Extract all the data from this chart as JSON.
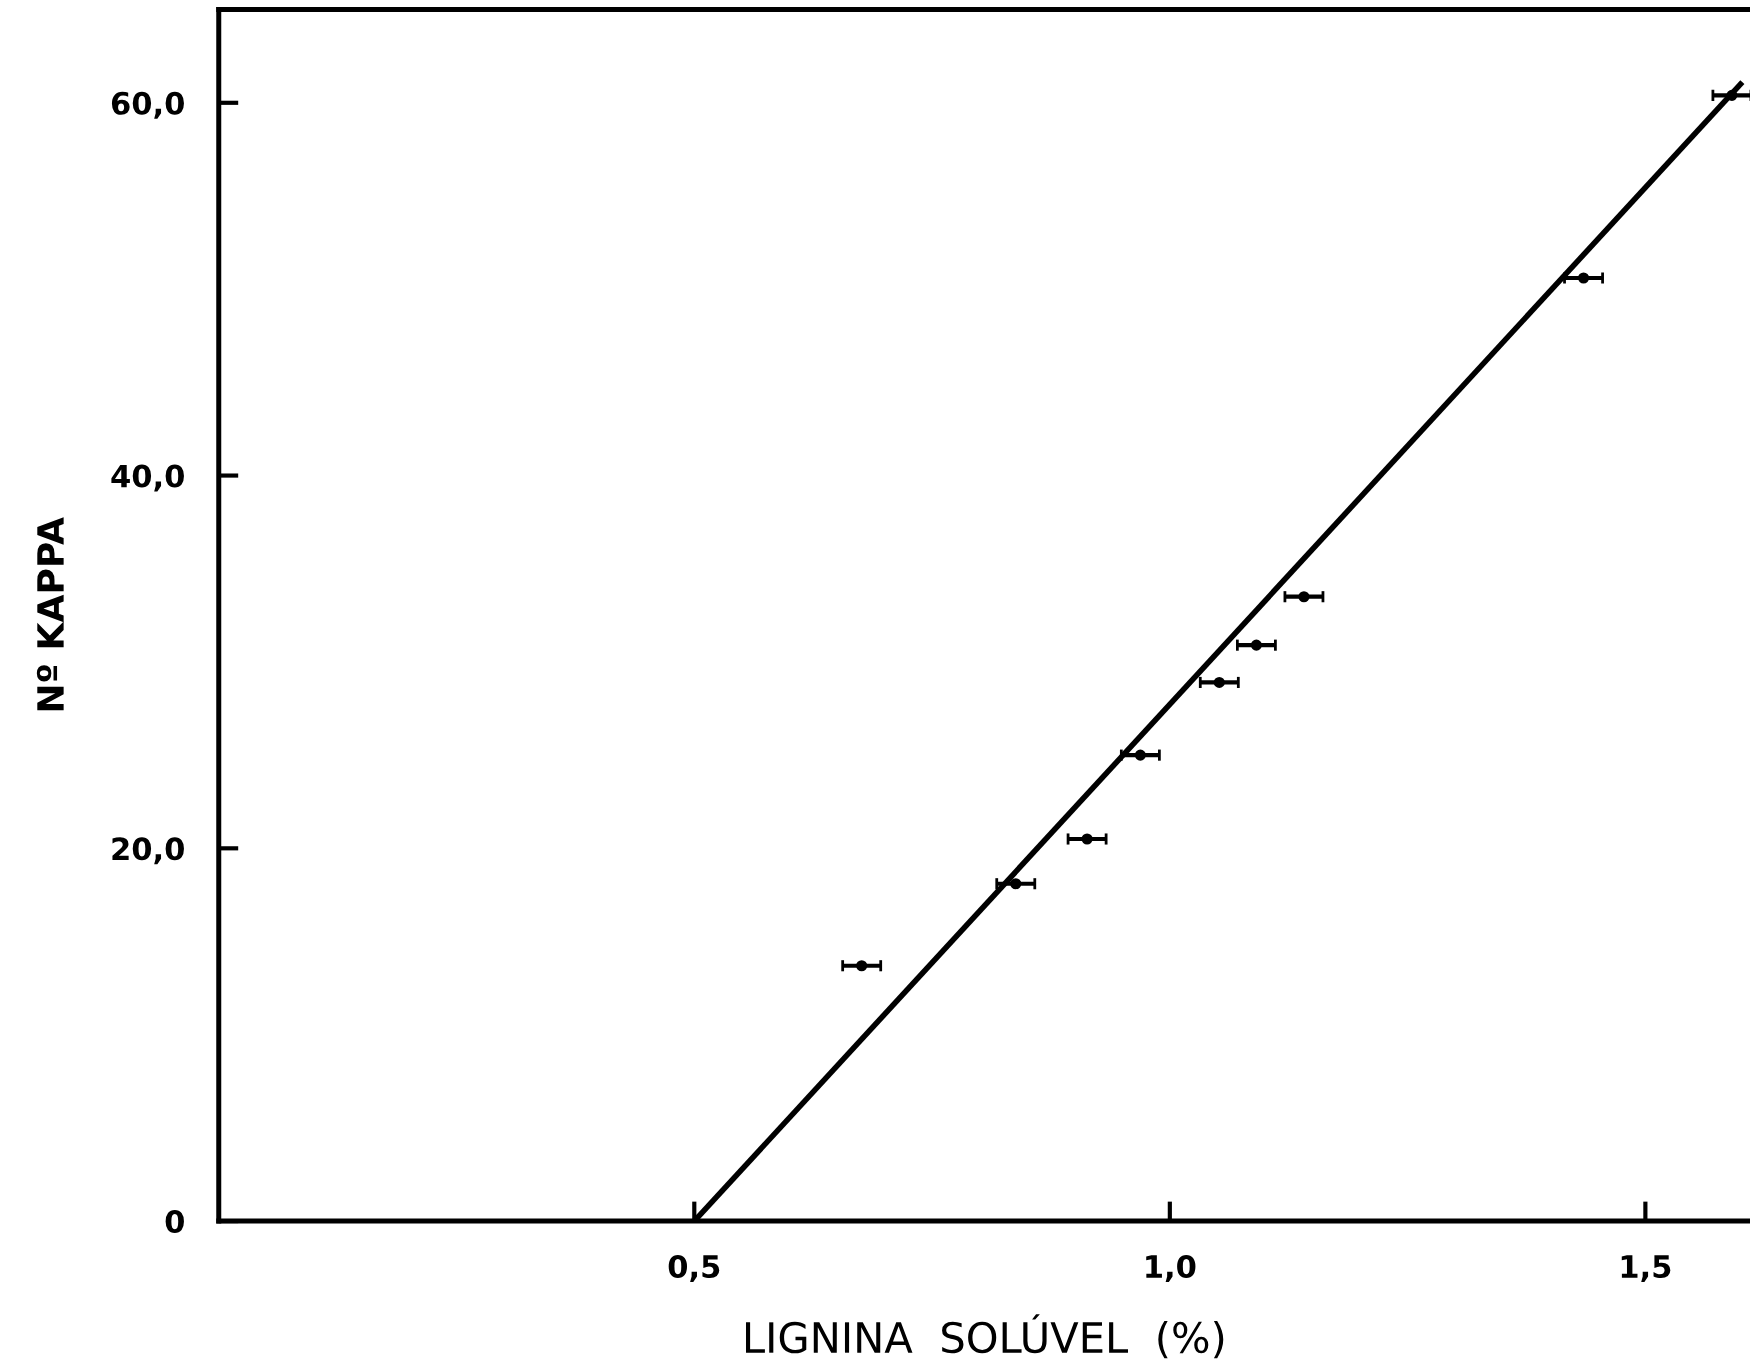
{
  "chart_data": {
    "type": "scatter",
    "xlabel": "LIGNINA  SOLÚVEL  (%)",
    "ylabel": "Nº KAPPA",
    "xlim": [
      0,
      1.61
    ],
    "ylim": [
      0,
      65
    ],
    "xticks": [
      {
        "value": 0.5,
        "label": "0,5"
      },
      {
        "value": 1.0,
        "label": "1,0"
      },
      {
        "value": 1.5,
        "label": "1,5"
      }
    ],
    "yticks": [
      {
        "value": 0,
        "label": "0"
      },
      {
        "value": 20,
        "label": "20,0"
      },
      {
        "value": 40,
        "label": "40,0"
      },
      {
        "value": 60,
        "label": "60,0"
      }
    ],
    "grid": false,
    "series": [
      {
        "marker": "circle",
        "color": "#000000",
        "x": [
          0.676,
          0.838,
          0.913,
          0.969,
          1.052,
          1.091,
          1.141,
          1.435,
          1.591
        ],
        "values": [
          13.7,
          18.1,
          20.5,
          25.0,
          28.9,
          30.9,
          33.5,
          50.6,
          60.4
        ],
        "xerrors": [
          0.02,
          0.02,
          0.02,
          0.02,
          0.02,
          0.02,
          0.02,
          0.02,
          0.02
        ]
      },
      {
        "type": "line",
        "marker": "none",
        "color": "#000000",
        "line_style": "solid",
        "x": [
          0.5,
          1.6
        ],
        "values": [
          0,
          61
        ]
      }
    ]
  }
}
